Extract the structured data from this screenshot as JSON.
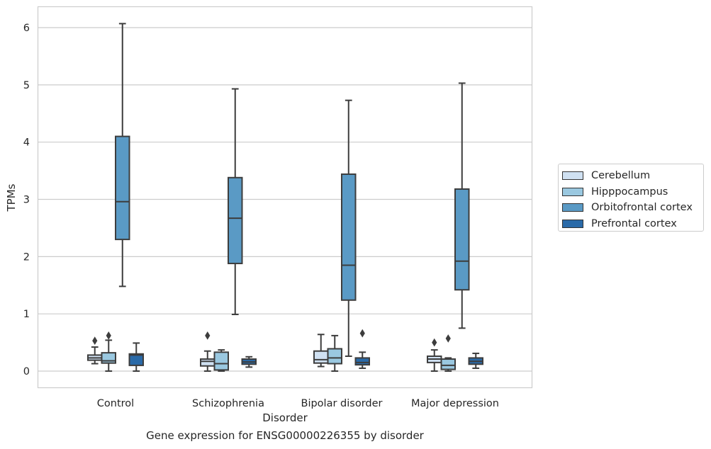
{
  "chart_data": {
    "type": "box",
    "title": "",
    "xlabel": "Disorder",
    "ylabel": "TPMs",
    "caption": "Gene expression for ENSG00000226355 by disorder",
    "categories": [
      "Control",
      "Schizophrenia",
      "Bipolar disorder",
      "Major depression"
    ],
    "ylim": [
      -0.3,
      6.35
    ],
    "yticks": [
      "0",
      "1",
      "2",
      "3",
      "4",
      "5",
      "6"
    ],
    "grid": "horizontal",
    "legend_position": "right",
    "series": [
      {
        "name": "Cerebellum",
        "color": "#d0e1f2",
        "boxes": [
          {
            "whislo": 0.13,
            "q1": 0.19,
            "med": 0.23,
            "q3": 0.28,
            "whishi": 0.42,
            "fliers": [
              0.53
            ]
          },
          {
            "whislo": 0.0,
            "q1": 0.09,
            "med": 0.17,
            "q3": 0.21,
            "whishi": 0.35,
            "fliers": [
              0.62
            ]
          },
          {
            "whislo": 0.08,
            "q1": 0.14,
            "med": 0.2,
            "q3": 0.35,
            "whishi": 0.64,
            "fliers": []
          },
          {
            "whislo": 0.0,
            "q1": 0.15,
            "med": 0.21,
            "q3": 0.26,
            "whishi": 0.37,
            "fliers": [
              0.5
            ]
          }
        ]
      },
      {
        "name": "Hipppocampus",
        "color": "#9ac8e0",
        "boxes": [
          {
            "whislo": 0.0,
            "q1": 0.14,
            "med": 0.18,
            "q3": 0.32,
            "whishi": 0.54,
            "fliers": [
              0.62
            ]
          },
          {
            "whislo": 0.0,
            "q1": 0.02,
            "med": 0.13,
            "q3": 0.33,
            "whishi": 0.37,
            "fliers": []
          },
          {
            "whislo": 0.0,
            "q1": 0.13,
            "med": 0.23,
            "q3": 0.39,
            "whishi": 0.62,
            "fliers": []
          },
          {
            "whislo": 0.0,
            "q1": 0.03,
            "med": 0.1,
            "q3": 0.21,
            "whishi": 0.23,
            "fliers": [
              0.57
            ]
          }
        ]
      },
      {
        "name": "Orbitofrontal cortex",
        "color": "#5a9ac5",
        "boxes": [
          {
            "whislo": 1.48,
            "q1": 2.3,
            "med": 2.96,
            "q3": 4.1,
            "whishi": 6.07,
            "fliers": []
          },
          {
            "whislo": 0.99,
            "q1": 1.88,
            "med": 2.67,
            "q3": 3.38,
            "whishi": 4.93,
            "fliers": []
          },
          {
            "whislo": 0.26,
            "q1": 1.24,
            "med": 1.85,
            "q3": 3.44,
            "whishi": 4.73,
            "fliers": []
          },
          {
            "whislo": 0.75,
            "q1": 1.42,
            "med": 1.92,
            "q3": 3.18,
            "whishi": 5.03,
            "fliers": []
          }
        ]
      },
      {
        "name": "Prefrontal cortex",
        "color": "#2a6aa8",
        "boxes": [
          {
            "whislo": 0.0,
            "q1": 0.1,
            "med": 0.28,
            "q3": 0.3,
            "whishi": 0.49,
            "fliers": []
          },
          {
            "whislo": 0.07,
            "q1": 0.12,
            "med": 0.16,
            "q3": 0.21,
            "whishi": 0.25,
            "fliers": []
          },
          {
            "whislo": 0.05,
            "q1": 0.11,
            "med": 0.15,
            "q3": 0.23,
            "whishi": 0.33,
            "fliers": [
              0.66
            ]
          },
          {
            "whislo": 0.05,
            "q1": 0.12,
            "med": 0.17,
            "q3": 0.23,
            "whishi": 0.31,
            "fliers": []
          }
        ]
      }
    ]
  }
}
